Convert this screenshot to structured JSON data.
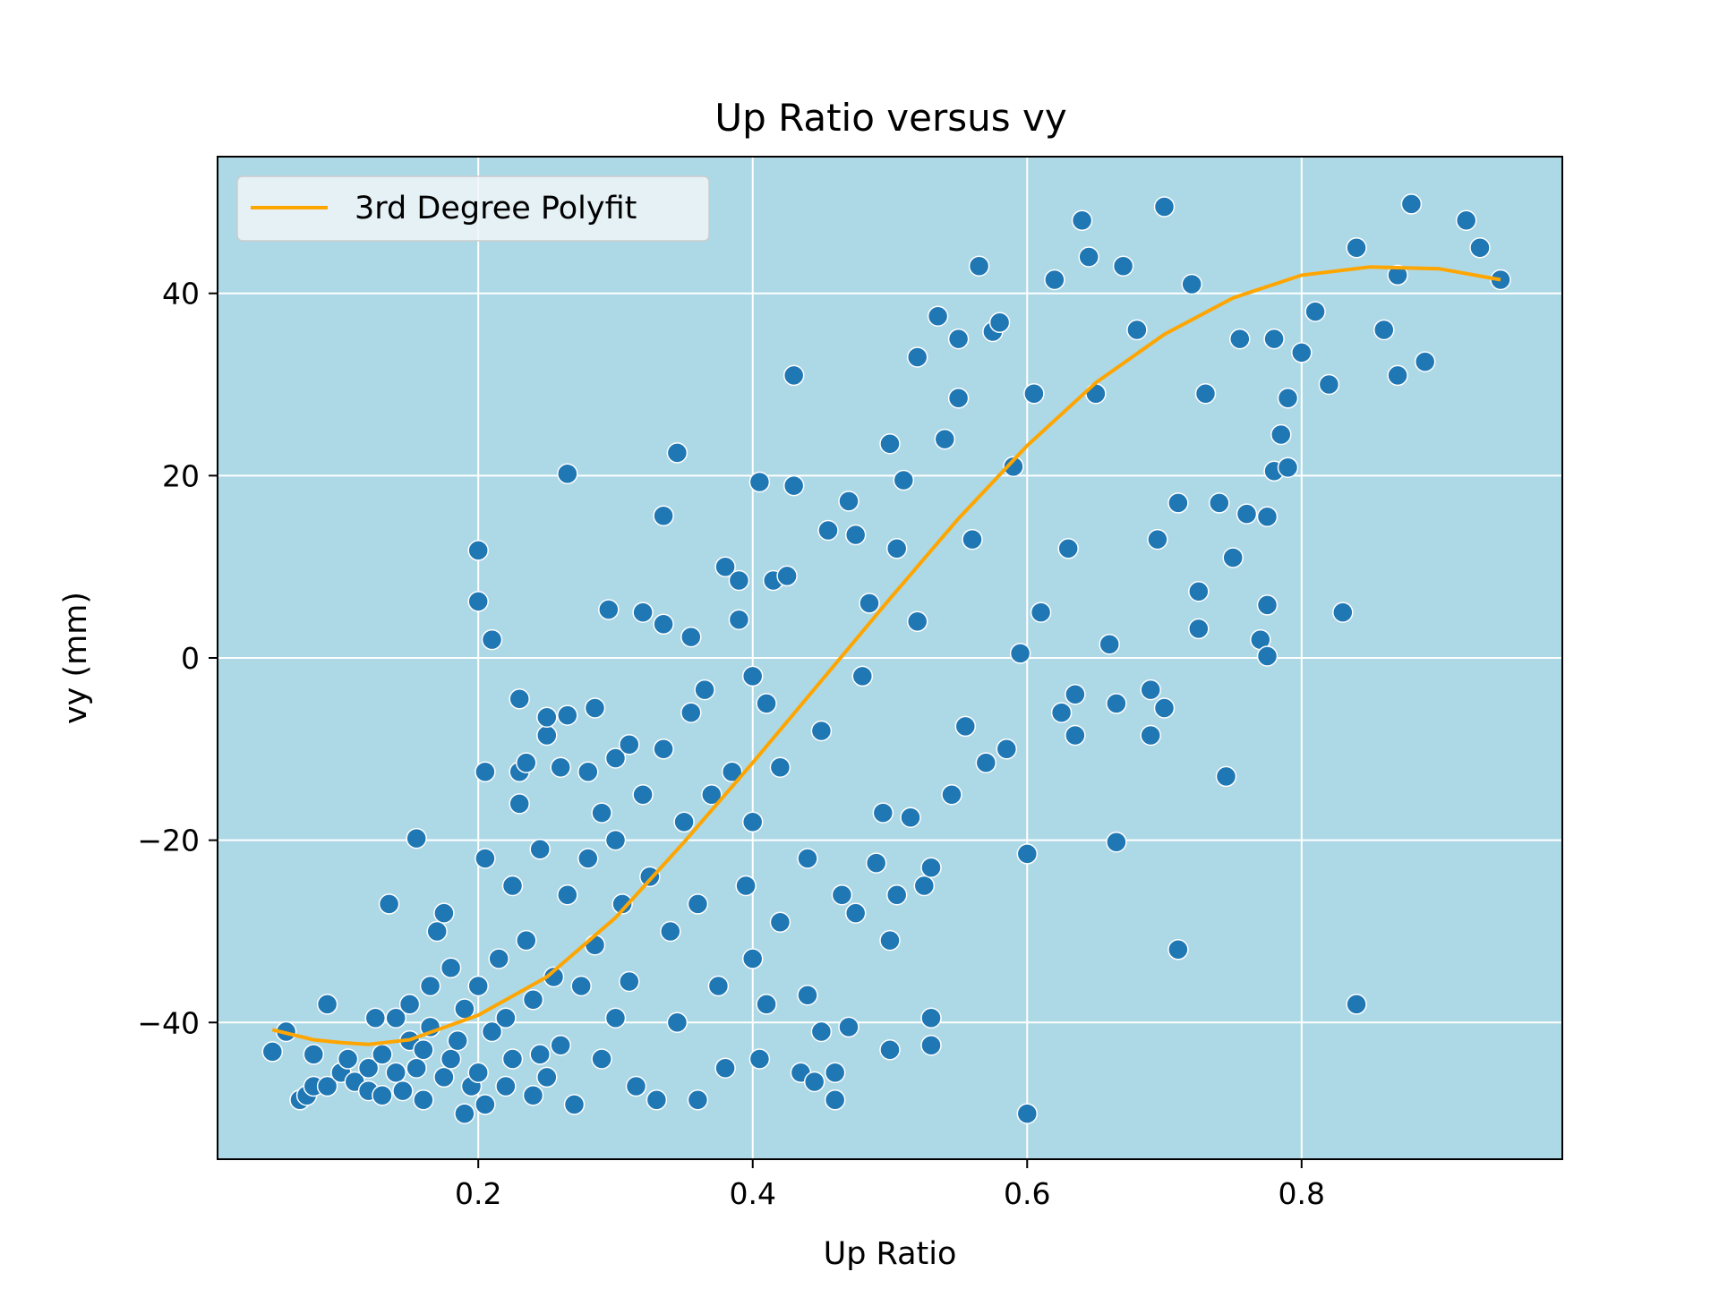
{
  "chart_data": {
    "type": "scatter",
    "title": "Up Ratio versus vy",
    "xlabel": "Up Ratio",
    "ylabel": "vy (mm)",
    "xlim": [
      0.01,
      0.99
    ],
    "ylim": [
      -55,
      55
    ],
    "x_ticks": [
      0.2,
      0.4,
      0.6,
      0.8
    ],
    "x_tick_labels": [
      "0.2",
      "0.4",
      "0.6",
      "0.8"
    ],
    "y_ticks": [
      -40,
      -20,
      0,
      20,
      40
    ],
    "y_tick_labels": [
      "−40",
      "−20",
      "0",
      "20",
      "40"
    ],
    "grid": true,
    "legend_position": "upper-left",
    "colors": {
      "plot_background": "#add8e6",
      "points": "#1f77b4",
      "point_edge": "#ffffff",
      "fit_line": "#ffa500",
      "grid": "#ffffff"
    },
    "series": [
      {
        "name": "",
        "type": "scatter",
        "points": [
          [
            0.05,
            -43.2
          ],
          [
            0.06,
            -41.0
          ],
          [
            0.07,
            -48.5
          ],
          [
            0.075,
            -48.0
          ],
          [
            0.08,
            -47.0
          ],
          [
            0.08,
            -43.5
          ],
          [
            0.09,
            -47.0
          ],
          [
            0.09,
            -38.0
          ],
          [
            0.1,
            -45.5
          ],
          [
            0.105,
            -44.0
          ],
          [
            0.11,
            -46.5
          ],
          [
            0.12,
            -47.5
          ],
          [
            0.12,
            -45.0
          ],
          [
            0.125,
            -39.5
          ],
          [
            0.13,
            -43.5
          ],
          [
            0.13,
            -48.0
          ],
          [
            0.135,
            -27.0
          ],
          [
            0.14,
            -39.5
          ],
          [
            0.14,
            -45.5
          ],
          [
            0.145,
            -47.5
          ],
          [
            0.15,
            -42.0
          ],
          [
            0.15,
            -38.0
          ],
          [
            0.155,
            -45.0
          ],
          [
            0.155,
            -19.8
          ],
          [
            0.16,
            -48.5
          ],
          [
            0.16,
            -43.0
          ],
          [
            0.165,
            -40.5
          ],
          [
            0.165,
            -36.0
          ],
          [
            0.17,
            -30.0
          ],
          [
            0.175,
            -28.0
          ],
          [
            0.175,
            -46.0
          ],
          [
            0.18,
            -44.0
          ],
          [
            0.18,
            -34.0
          ],
          [
            0.185,
            -42.0
          ],
          [
            0.19,
            -50.0
          ],
          [
            0.19,
            -38.5
          ],
          [
            0.195,
            -47.0
          ],
          [
            0.2,
            -45.5
          ],
          [
            0.2,
            -36.0
          ],
          [
            0.2,
            11.8
          ],
          [
            0.2,
            6.2
          ],
          [
            0.205,
            -49.0
          ],
          [
            0.205,
            -22.0
          ],
          [
            0.205,
            -12.5
          ],
          [
            0.21,
            2.0
          ],
          [
            0.21,
            -41.0
          ],
          [
            0.215,
            -33.0
          ],
          [
            0.22,
            -47.0
          ],
          [
            0.22,
            -39.5
          ],
          [
            0.225,
            -25.0
          ],
          [
            0.225,
            -44.0
          ],
          [
            0.23,
            -4.5
          ],
          [
            0.23,
            -12.5
          ],
          [
            0.23,
            -16.0
          ],
          [
            0.235,
            -11.5
          ],
          [
            0.235,
            -31.0
          ],
          [
            0.24,
            -37.5
          ],
          [
            0.24,
            -48.0
          ],
          [
            0.245,
            -21.0
          ],
          [
            0.245,
            -43.5
          ],
          [
            0.25,
            -8.5
          ],
          [
            0.25,
            -6.5
          ],
          [
            0.25,
            -46.0
          ],
          [
            0.255,
            -35.0
          ],
          [
            0.26,
            -12.0
          ],
          [
            0.26,
            -42.5
          ],
          [
            0.265,
            -6.3
          ],
          [
            0.265,
            20.2
          ],
          [
            0.265,
            -26.0
          ],
          [
            0.27,
            -49.0
          ],
          [
            0.275,
            -36.0
          ],
          [
            0.28,
            -12.5
          ],
          [
            0.28,
            -22.0
          ],
          [
            0.285,
            -5.5
          ],
          [
            0.285,
            -31.5
          ],
          [
            0.29,
            -17.0
          ],
          [
            0.29,
            -44.0
          ],
          [
            0.295,
            5.3
          ],
          [
            0.3,
            -11.0
          ],
          [
            0.3,
            -20.0
          ],
          [
            0.3,
            -39.5
          ],
          [
            0.305,
            -27.0
          ],
          [
            0.31,
            -9.5
          ],
          [
            0.31,
            -35.5
          ],
          [
            0.315,
            -47.0
          ],
          [
            0.32,
            -15.0
          ],
          [
            0.32,
            5.0
          ],
          [
            0.325,
            -24.0
          ],
          [
            0.33,
            -48.5
          ],
          [
            0.335,
            3.7
          ],
          [
            0.335,
            15.6
          ],
          [
            0.335,
            -10.0
          ],
          [
            0.34,
            -30.0
          ],
          [
            0.345,
            22.5
          ],
          [
            0.345,
            -40.0
          ],
          [
            0.35,
            -18.0
          ],
          [
            0.355,
            -6.0
          ],
          [
            0.355,
            2.3
          ],
          [
            0.36,
            -48.5
          ],
          [
            0.36,
            -27.0
          ],
          [
            0.365,
            -3.5
          ],
          [
            0.37,
            -15.0
          ],
          [
            0.375,
            -36.0
          ],
          [
            0.38,
            -45.0
          ],
          [
            0.38,
            10.0
          ],
          [
            0.385,
            -12.5
          ],
          [
            0.39,
            4.2
          ],
          [
            0.39,
            8.5
          ],
          [
            0.395,
            -25.0
          ],
          [
            0.4,
            -18.0
          ],
          [
            0.4,
            -2.0
          ],
          [
            0.4,
            -33.0
          ],
          [
            0.405,
            -44.0
          ],
          [
            0.405,
            19.3
          ],
          [
            0.41,
            -38.0
          ],
          [
            0.41,
            -5.0
          ],
          [
            0.415,
            8.5
          ],
          [
            0.42,
            -12.0
          ],
          [
            0.42,
            -29.0
          ],
          [
            0.425,
            9.0
          ],
          [
            0.43,
            31.0
          ],
          [
            0.43,
            18.9
          ],
          [
            0.435,
            -45.5
          ],
          [
            0.44,
            -37.0
          ],
          [
            0.44,
            -22.0
          ],
          [
            0.445,
            -46.5
          ],
          [
            0.45,
            -8.0
          ],
          [
            0.45,
            -41.0
          ],
          [
            0.455,
            14.0
          ],
          [
            0.46,
            -45.5
          ],
          [
            0.46,
            -48.5
          ],
          [
            0.465,
            -26.0
          ],
          [
            0.47,
            17.2
          ],
          [
            0.47,
            -40.5
          ],
          [
            0.475,
            13.5
          ],
          [
            0.475,
            -28.0
          ],
          [
            0.48,
            -2.0
          ],
          [
            0.485,
            6.0
          ],
          [
            0.49,
            -22.5
          ],
          [
            0.495,
            -17.0
          ],
          [
            0.5,
            23.5
          ],
          [
            0.5,
            -31.0
          ],
          [
            0.5,
            -43.0
          ],
          [
            0.505,
            12.0
          ],
          [
            0.505,
            -26.0
          ],
          [
            0.51,
            19.5
          ],
          [
            0.515,
            -17.5
          ],
          [
            0.52,
            33.0
          ],
          [
            0.52,
            4.0
          ],
          [
            0.525,
            -25.0
          ],
          [
            0.53,
            -42.5
          ],
          [
            0.53,
            -39.5
          ],
          [
            0.53,
            -23.0
          ],
          [
            0.535,
            37.5
          ],
          [
            0.54,
            24.0
          ],
          [
            0.545,
            -15.0
          ],
          [
            0.55,
            35.0
          ],
          [
            0.55,
            28.5
          ],
          [
            0.555,
            -7.5
          ],
          [
            0.56,
            13.0
          ],
          [
            0.565,
            43.0
          ],
          [
            0.57,
            -11.5
          ],
          [
            0.575,
            35.8
          ],
          [
            0.58,
            36.8
          ],
          [
            0.585,
            -10.0
          ],
          [
            0.59,
            21.0
          ],
          [
            0.595,
            0.5
          ],
          [
            0.6,
            -21.5
          ],
          [
            0.6,
            -50.0
          ],
          [
            0.605,
            29.0
          ],
          [
            0.61,
            5.0
          ],
          [
            0.62,
            41.5
          ],
          [
            0.625,
            -6.0
          ],
          [
            0.63,
            12.0
          ],
          [
            0.635,
            -8.5
          ],
          [
            0.635,
            -4.0
          ],
          [
            0.64,
            48.0
          ],
          [
            0.645,
            44.0
          ],
          [
            0.65,
            29.0
          ],
          [
            0.66,
            1.5
          ],
          [
            0.665,
            -5.0
          ],
          [
            0.665,
            -20.2
          ],
          [
            0.67,
            43.0
          ],
          [
            0.68,
            36.0
          ],
          [
            0.69,
            -8.5
          ],
          [
            0.69,
            -3.5
          ],
          [
            0.695,
            13.0
          ],
          [
            0.7,
            -5.5
          ],
          [
            0.7,
            49.5
          ],
          [
            0.71,
            -32.0
          ],
          [
            0.71,
            17.0
          ],
          [
            0.72,
            41.0
          ],
          [
            0.725,
            7.3
          ],
          [
            0.725,
            3.2
          ],
          [
            0.73,
            29.0
          ],
          [
            0.74,
            17.0
          ],
          [
            0.745,
            -13.0
          ],
          [
            0.75,
            11.0
          ],
          [
            0.755,
            35.0
          ],
          [
            0.76,
            15.8
          ],
          [
            0.77,
            2.0
          ],
          [
            0.775,
            15.5
          ],
          [
            0.775,
            0.2
          ],
          [
            0.775,
            5.8
          ],
          [
            0.78,
            35.0
          ],
          [
            0.78,
            20.5
          ],
          [
            0.785,
            24.5
          ],
          [
            0.79,
            28.5
          ],
          [
            0.79,
            20.9
          ],
          [
            0.8,
            33.5
          ],
          [
            0.81,
            38.0
          ],
          [
            0.82,
            30.0
          ],
          [
            0.83,
            5.0
          ],
          [
            0.84,
            -38.0
          ],
          [
            0.84,
            45.0
          ],
          [
            0.86,
            36.0
          ],
          [
            0.87,
            31.0
          ],
          [
            0.87,
            42.0
          ],
          [
            0.88,
            49.8
          ],
          [
            0.89,
            32.5
          ],
          [
            0.92,
            48.0
          ],
          [
            0.93,
            45.0
          ],
          [
            0.945,
            41.5
          ]
        ]
      },
      {
        "name": "3rd Degree Polyfit",
        "type": "line",
        "points": [
          [
            0.05,
            -40.8
          ],
          [
            0.08,
            -41.9
          ],
          [
            0.1,
            -42.2
          ],
          [
            0.12,
            -42.4
          ],
          [
            0.15,
            -41.9
          ],
          [
            0.2,
            -39.2
          ],
          [
            0.25,
            -35.0
          ],
          [
            0.3,
            -28.5
          ],
          [
            0.35,
            -20.2
          ],
          [
            0.4,
            -11.5
          ],
          [
            0.45,
            -2.5
          ],
          [
            0.5,
            6.5
          ],
          [
            0.55,
            15.3
          ],
          [
            0.6,
            23.3
          ],
          [
            0.65,
            30.2
          ],
          [
            0.7,
            35.5
          ],
          [
            0.75,
            39.5
          ],
          [
            0.8,
            42.0
          ],
          [
            0.85,
            42.9
          ],
          [
            0.9,
            42.7
          ],
          [
            0.945,
            41.5
          ]
        ]
      }
    ]
  }
}
